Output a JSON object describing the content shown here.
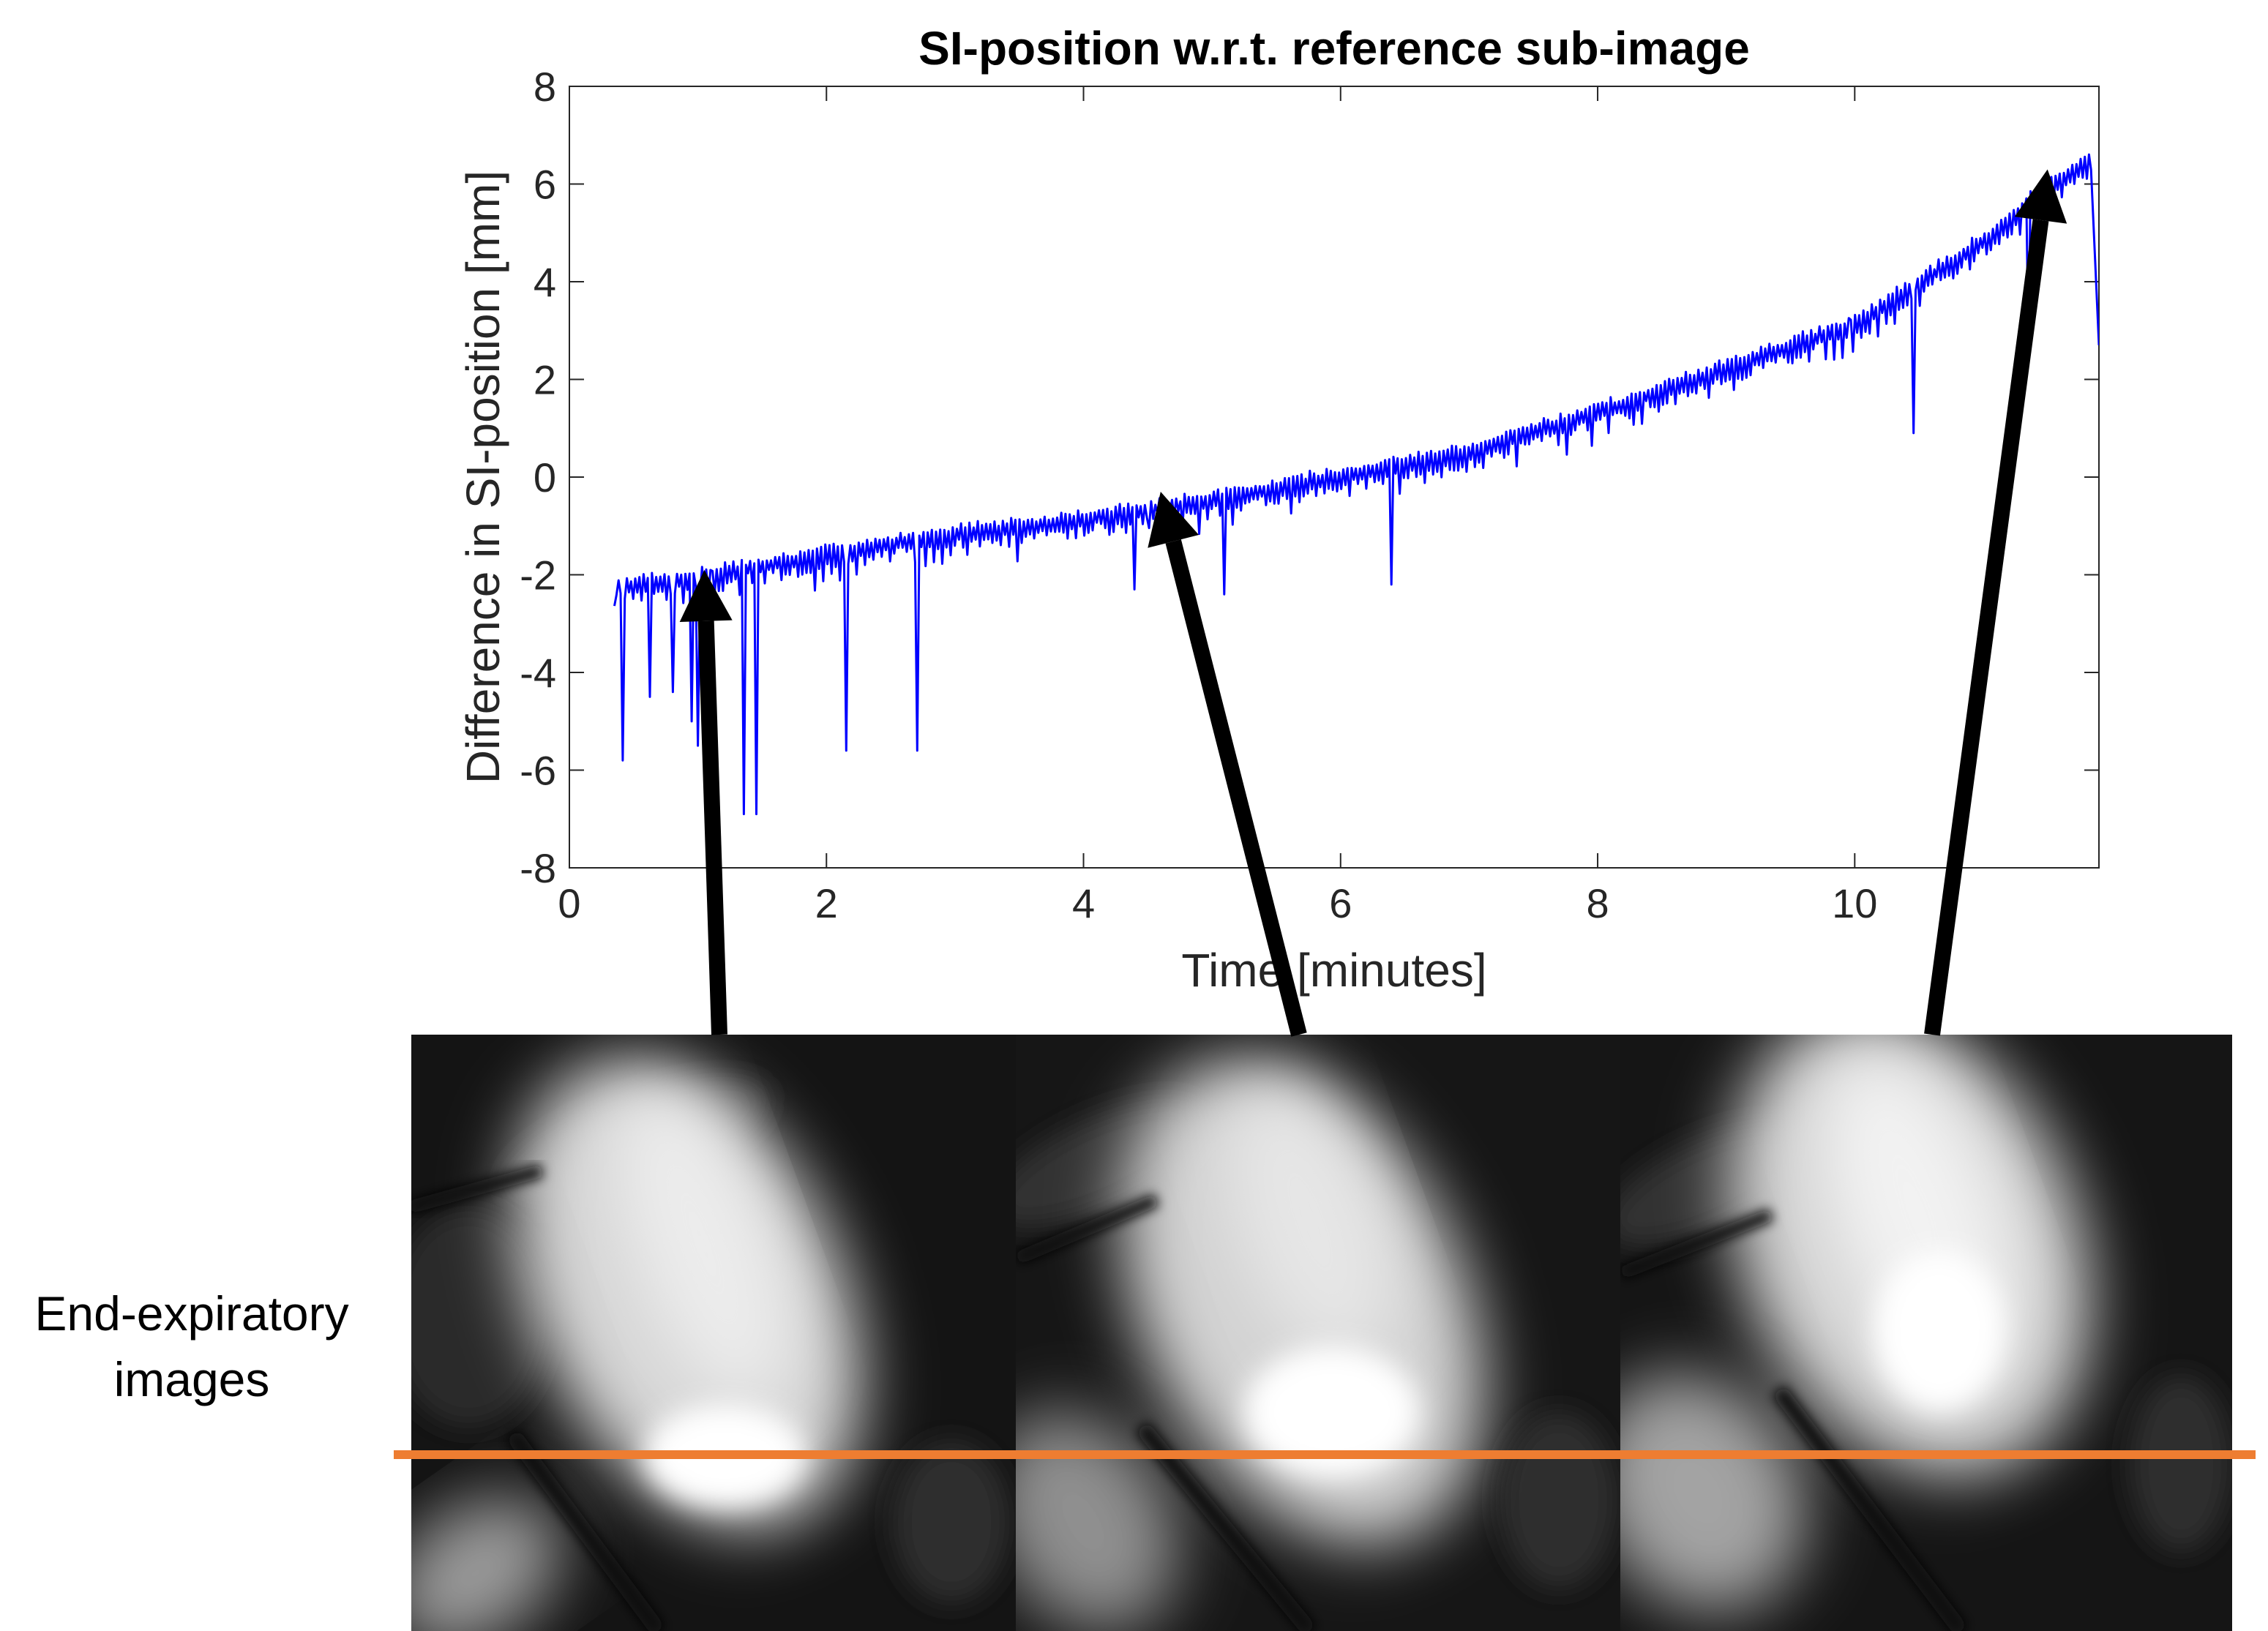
{
  "chart_data": {
    "type": "line",
    "title": "SI-position w.r.t. reference sub-image",
    "xlabel": "Time [minutes]",
    "ylabel": "Difference in SI-position [mm]",
    "xlim": [
      0,
      11.9
    ],
    "ylim": [
      -8,
      8
    ],
    "xticks": [
      "0",
      "2",
      "4",
      "6",
      "8",
      "10"
    ],
    "xtick_values": [
      0,
      2,
      4,
      6,
      8,
      10
    ],
    "yticks": [
      "-8",
      "-6",
      "-4",
      "-2",
      "0",
      "2",
      "4",
      "6",
      "8"
    ],
    "ytick_values": [
      -8,
      -6,
      -4,
      -2,
      0,
      2,
      4,
      6,
      8
    ],
    "grid": false,
    "series": [
      {
        "name": "SI-position difference",
        "color": "#0000ff",
        "trend_points": [
          [
            0.35,
            -2.2
          ],
          [
            1.0,
            -2.0
          ],
          [
            2.0,
            -1.5
          ],
          [
            3.0,
            -1.1
          ],
          [
            4.0,
            -0.8
          ],
          [
            5.0,
            -0.4
          ],
          [
            6.0,
            0.1
          ],
          [
            7.0,
            0.6
          ],
          [
            8.0,
            1.4
          ],
          [
            9.0,
            2.3
          ],
          [
            10.0,
            3.2
          ],
          [
            11.0,
            4.9
          ],
          [
            11.5,
            6.0
          ],
          [
            11.85,
            6.6
          ]
        ],
        "dips": [
          [
            0.42,
            -5.8
          ],
          [
            0.62,
            -4.5
          ],
          [
            0.8,
            -4.4
          ],
          [
            0.95,
            -5.0
          ],
          [
            1.0,
            -5.5
          ],
          [
            1.35,
            -6.9
          ],
          [
            1.45,
            -6.9
          ],
          [
            2.15,
            -5.6
          ],
          [
            2.7,
            -5.6
          ],
          [
            4.4,
            -2.3
          ],
          [
            5.1,
            -2.4
          ],
          [
            6.4,
            -2.2
          ],
          [
            10.45,
            0.9
          ],
          [
            11.35,
            2.7
          ]
        ],
        "end_value": [
          11.9,
          2.7
        ]
      }
    ],
    "arrows": [
      {
        "points_to": [
          1.05,
          -1.9
        ]
      },
      {
        "points_to": [
          4.6,
          -0.3
        ]
      },
      {
        "points_to": [
          11.5,
          6.3
        ]
      }
    ],
    "annotations": {
      "side_label": [
        "End-expiratory",
        "images"
      ],
      "reference_line_color": "#ee7d31"
    }
  }
}
